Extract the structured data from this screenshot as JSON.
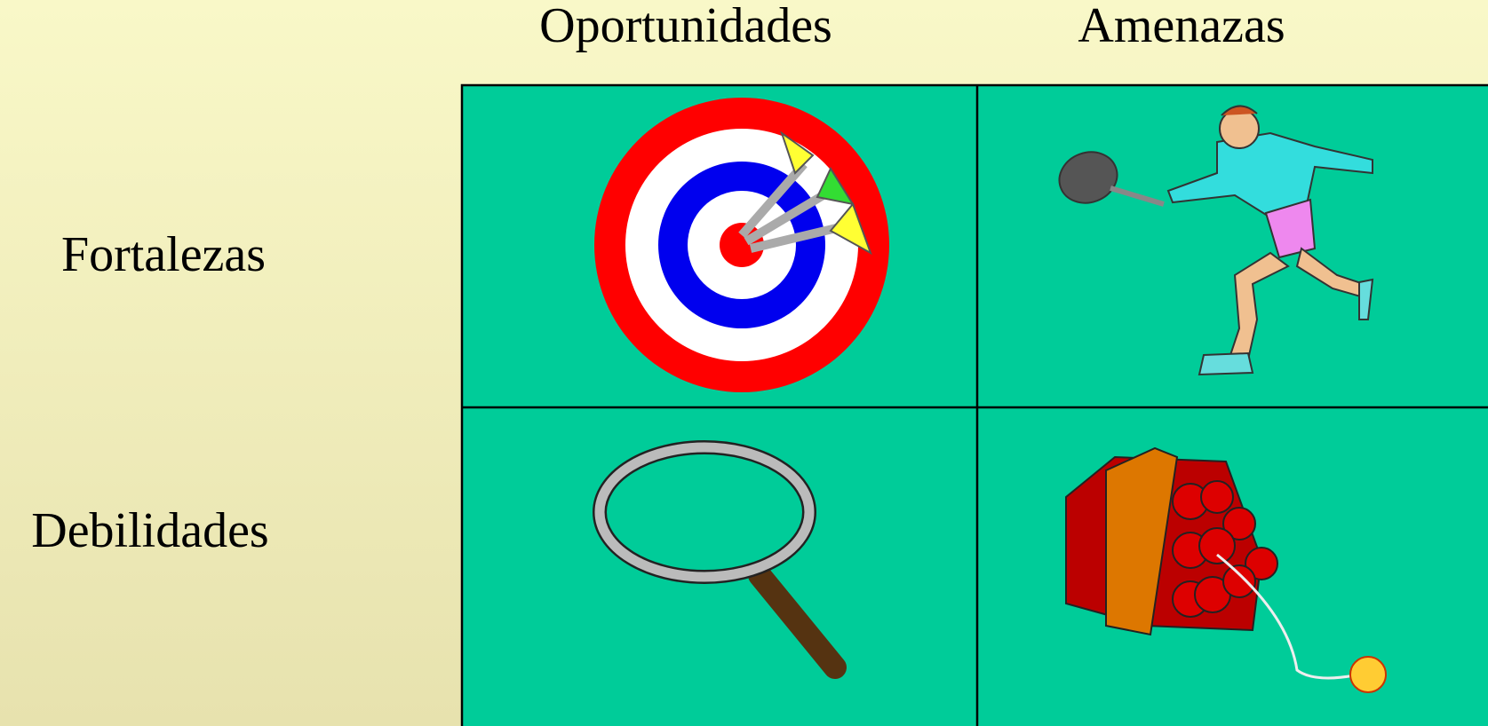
{
  "columns": [
    "Oportunidades",
    "Amenazas"
  ],
  "rows": [
    "Fortalezas",
    "Debilidades"
  ]
}
